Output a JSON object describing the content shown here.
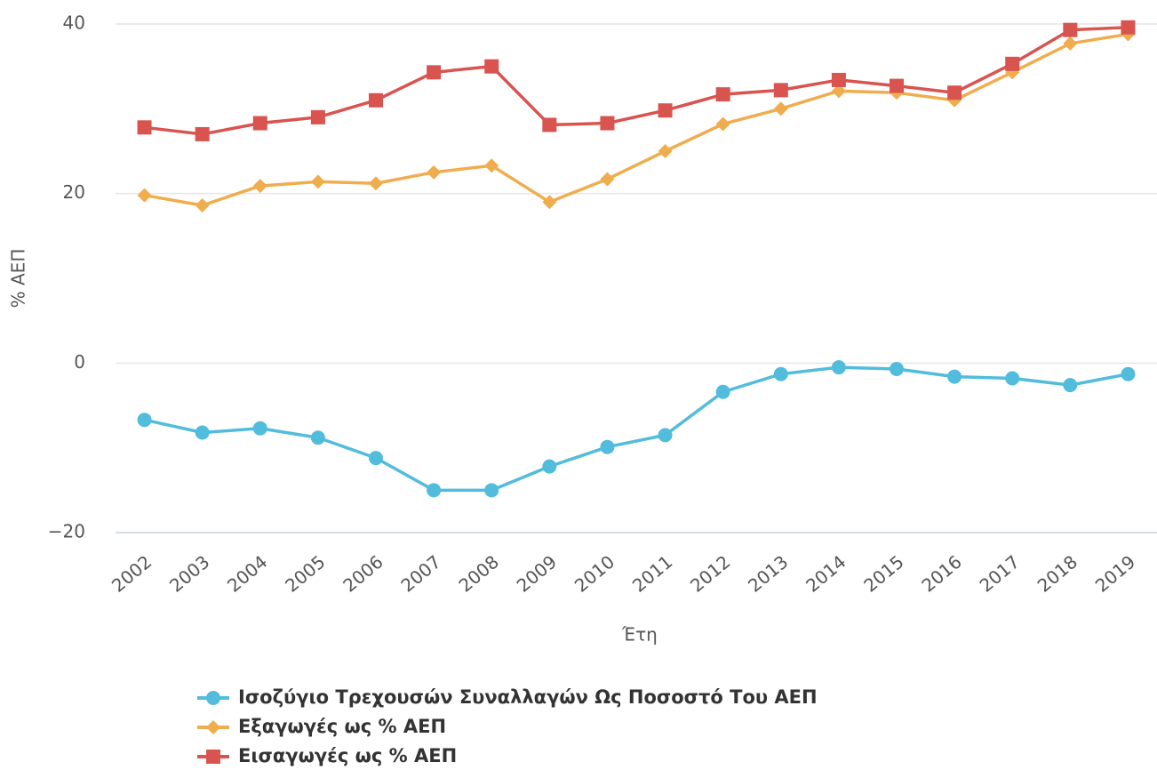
{
  "chart_data": {
    "type": "line",
    "x_label": "Έτη",
    "y_label": "% ΑΕΠ",
    "categories": [
      "2002",
      "2003",
      "2004",
      "2005",
      "2006",
      "2007",
      "2008",
      "2009",
      "2010",
      "2011",
      "2012",
      "2013",
      "2014",
      "2015",
      "2016",
      "2017",
      "2018",
      "2019"
    ],
    "series": [
      {
        "name": "Ισοζύγιο Τρεχουσών Συναλλαγών Ως Ποσοστό Του ΑΕΠ",
        "color": "#52bcdc",
        "marker": "circle",
        "values": [
          -6.7,
          -8.2,
          -7.7,
          -8.8,
          -11.2,
          -15.0,
          -15.0,
          -12.2,
          -9.9,
          -8.5,
          -3.4,
          -1.3,
          -0.5,
          -0.7,
          -1.6,
          -1.8,
          -2.6,
          -1.3
        ]
      },
      {
        "name": "Εξαγωγές ως % ΑΕΠ",
        "color": "#f0ad4e",
        "marker": "diamond",
        "values": [
          19.8,
          18.6,
          20.9,
          21.4,
          21.2,
          22.5,
          23.3,
          19.0,
          21.7,
          25.0,
          28.2,
          30.0,
          32.1,
          31.9,
          31.0,
          34.3,
          37.7,
          38.8
        ]
      },
      {
        "name": "Εισαγωγές ως % ΑΕΠ",
        "color": "#d9534f",
        "marker": "square",
        "values": [
          27.8,
          27.0,
          28.3,
          29.0,
          31.0,
          34.3,
          35.0,
          28.1,
          28.3,
          29.8,
          31.7,
          32.2,
          33.4,
          32.7,
          31.9,
          35.3,
          39.3,
          39.6
        ]
      }
    ],
    "ylim": [
      -20,
      40
    ],
    "yticks": [
      {
        "value": -20,
        "label": "−20"
      },
      0,
      20,
      40
    ],
    "grid": true
  }
}
